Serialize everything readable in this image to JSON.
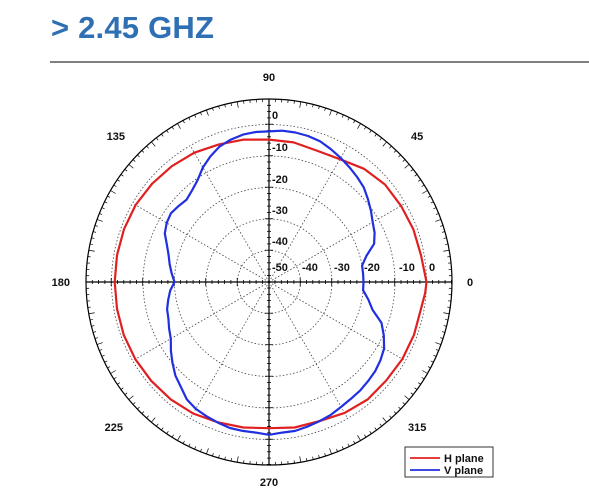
{
  "header": {
    "title": "> 2.45 GHZ"
  },
  "chart_data": {
    "type": "polar",
    "angle_labels": [
      "0",
      "45",
      "90",
      "135",
      "180",
      "225",
      "270",
      "315"
    ],
    "radial_labels": [
      "0",
      "-10",
      "-20",
      "-30",
      "-40",
      "-50",
      "-40",
      "-30",
      "-20",
      "-10",
      "0"
    ],
    "rlim": [
      -50,
      0
    ],
    "grid": true,
    "legend_position": "bottom-right",
    "series": [
      {
        "name": "H plane",
        "color": "#e02020",
        "theta": [
          0,
          10,
          20,
          30,
          40,
          50,
          60,
          70,
          80,
          90,
          100,
          110,
          120,
          130,
          140,
          150,
          160,
          170,
          180,
          190,
          200,
          210,
          220,
          230,
          240,
          250,
          260,
          270,
          280,
          290,
          300,
          310,
          320,
          330,
          340,
          350,
          356
        ],
        "r": [
          0,
          -1,
          -1.2,
          -1.6,
          -1.9,
          -3.1,
          -5.0,
          -5.6,
          -5.0,
          -4.8,
          -4.1,
          -3.5,
          -2.6,
          -2.0,
          -1.5,
          -1.1,
          -1.0,
          -1.0,
          -1.0,
          -1.0,
          -0.9,
          -1.0,
          -1.2,
          -1.4,
          -1.8,
          -2.6,
          -3.1,
          -3.6,
          -3.1,
          -3.0,
          -2.0,
          -1.3,
          -1.4,
          -1.1,
          -1.0,
          -1.0,
          -0.3
        ]
      },
      {
        "name": "V plane",
        "color": "#2030e0",
        "theta": [
          0,
          5,
          10,
          15,
          20,
          25,
          30,
          35,
          40,
          45,
          50,
          55,
          60,
          65,
          70,
          75,
          80,
          85,
          90,
          95,
          100,
          105,
          110,
          115,
          120,
          125,
          130,
          135,
          140,
          145,
          150,
          155,
          160,
          165,
          170,
          175,
          180,
          185,
          190,
          195,
          200,
          205,
          210,
          215,
          220,
          225,
          230,
          235,
          240,
          245,
          250,
          255,
          260,
          265,
          270,
          275,
          280,
          285,
          290,
          295,
          300,
          305,
          310,
          315,
          320,
          325,
          330,
          335,
          340,
          345,
          350,
          355
        ],
        "r": [
          -20,
          -20,
          -20,
          -18,
          -14.5,
          -13,
          -12,
          -10.5,
          -9,
          -7.5,
          -6.5,
          -5.5,
          -4.5,
          -3.5,
          -2.5,
          -2,
          -1.8,
          -1.8,
          -2.2,
          -2.2,
          -2.5,
          -3.2,
          -4.2,
          -6,
          -8,
          -10.5,
          -12,
          -13,
          -12.5,
          -12,
          -12.5,
          -13.5,
          -15.5,
          -17,
          -18,
          -19,
          -20,
          -18.5,
          -17.5,
          -16.5,
          -16,
          -15,
          -14,
          -12,
          -10,
          -8,
          -6.5,
          -4.5,
          -3.5,
          -3,
          -2.5,
          -2,
          -2,
          -2,
          -1.5,
          -2,
          -2,
          -2.5,
          -3,
          -3.5,
          -4.2,
          -4.7,
          -5,
          -5.5,
          -6,
          -6.8,
          -7.8,
          -9.8,
          -12,
          -16,
          -18,
          -20
        ]
      }
    ]
  }
}
